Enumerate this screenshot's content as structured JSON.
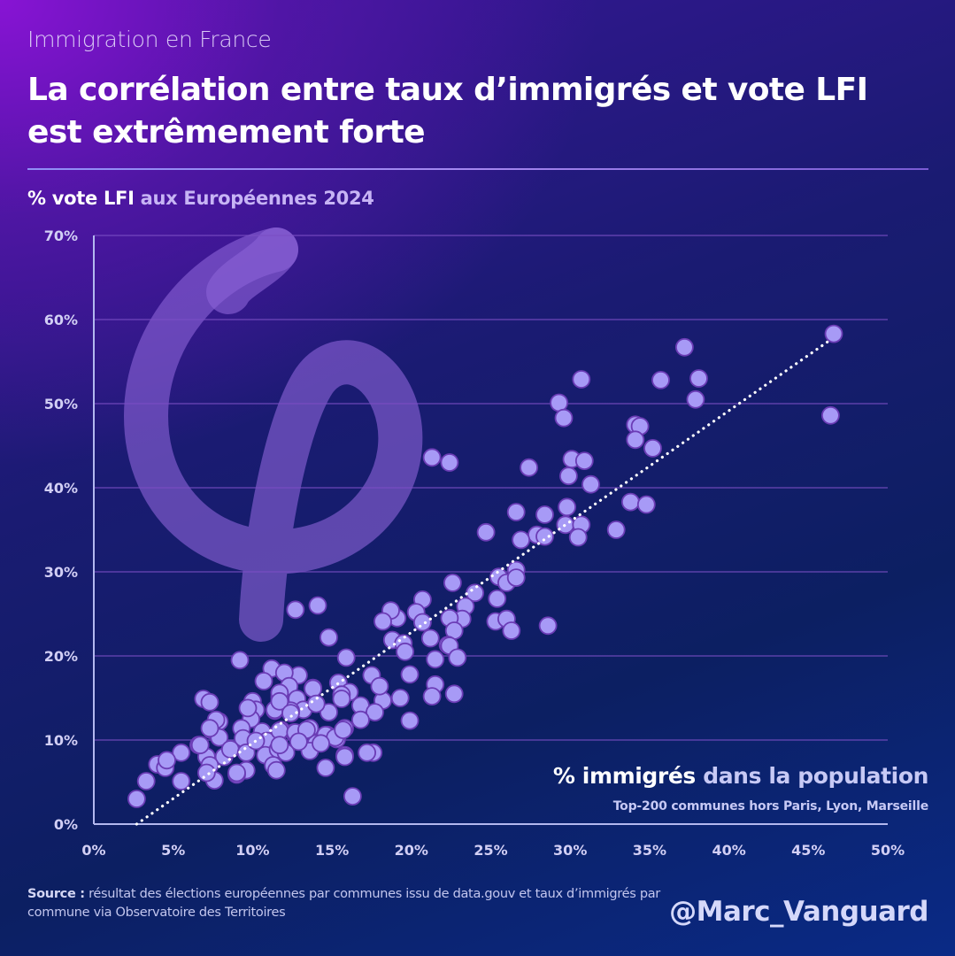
{
  "header": {
    "kicker": "Immigration en France",
    "title": "La corrélation entre taux d’immigrés et vote LFI est extrêmement forte"
  },
  "y_axis_title": {
    "highlight": "% vote LFI",
    "rest": " aux Européennes 2024"
  },
  "x_axis_title": {
    "highlight": "% immigrés",
    "rest": " dans la population",
    "subtitle": "Top-200 communes hors Paris, Lyon, Marseille"
  },
  "footer": {
    "source_label": "Source :",
    "source_text": " résultat des élections européennes par communes issu de data.gouv et taux d’immigrés par commune via Observatoire des Territoires",
    "handle": "@Marc_Vanguard"
  },
  "background_logo": "lfi-phi-logo",
  "colors": {
    "point_fill": "#a79af6",
    "point_stroke": "#6b3cb5",
    "trendline": "#ffffff",
    "gridline": "#7b4fc4",
    "axis": "#b3b8ef"
  },
  "chart_data": {
    "type": "scatter",
    "title": "% vote LFI aux Européennes 2024",
    "xlabel": "% immigrés dans la population",
    "ylabel": "% vote LFI",
    "subtitle": "Top-200 communes hors Paris, Lyon, Marseille",
    "xlim": [
      0,
      50
    ],
    "ylim": [
      0,
      70
    ],
    "x_ticks": [
      "0%",
      "5%",
      "10%",
      "15%",
      "20%",
      "25%",
      "30%",
      "35%",
      "40%",
      "45%",
      "50%"
    ],
    "y_ticks": [
      "0%",
      "10%",
      "20%",
      "30%",
      "40%",
      "50%",
      "60%",
      "70%"
    ],
    "grid": "horizontal",
    "trendline": {
      "style": "dotted",
      "from": [
        2.7,
        0
      ],
      "to": [
        46.4,
        57.6
      ]
    },
    "points": [
      [
        46.6,
        58.3
      ],
      [
        46.4,
        48.6
      ],
      [
        37.2,
        56.7
      ],
      [
        30.7,
        52.9
      ],
      [
        35.7,
        52.8
      ],
      [
        38.1,
        53.0
      ],
      [
        37.9,
        50.5
      ],
      [
        29.3,
        50.1
      ],
      [
        29.6,
        48.3
      ],
      [
        34.1,
        47.5
      ],
      [
        34.4,
        47.3
      ],
      [
        34.1,
        45.7
      ],
      [
        35.2,
        44.7
      ],
      [
        27.4,
        42.4
      ],
      [
        30.1,
        43.4
      ],
      [
        30.9,
        43.2
      ],
      [
        29.9,
        41.4
      ],
      [
        31.3,
        40.4
      ],
      [
        26.6,
        37.1
      ],
      [
        28.4,
        36.8
      ],
      [
        29.8,
        37.7
      ],
      [
        33.8,
        38.3
      ],
      [
        34.8,
        38.0
      ],
      [
        32.9,
        35.0
      ],
      [
        29.7,
        35.6
      ],
      [
        30.7,
        35.6
      ],
      [
        30.5,
        34.1
      ],
      [
        27.9,
        34.4
      ],
      [
        28.4,
        34.2
      ],
      [
        26.9,
        33.8
      ],
      [
        21.3,
        43.6
      ],
      [
        22.4,
        43.0
      ],
      [
        24.7,
        34.7
      ],
      [
        26.6,
        30.2
      ],
      [
        25.5,
        29.4
      ],
      [
        26.0,
        28.7
      ],
      [
        26.6,
        29.3
      ],
      [
        22.6,
        28.7
      ],
      [
        24.0,
        27.5
      ],
      [
        25.4,
        26.8
      ],
      [
        20.7,
        26.7
      ],
      [
        23.4,
        25.9
      ],
      [
        23.2,
        24.4
      ],
      [
        22.4,
        24.5
      ],
      [
        20.3,
        25.2
      ],
      [
        19.1,
        24.5
      ],
      [
        18.7,
        25.4
      ],
      [
        18.2,
        24.1
      ],
      [
        20.7,
        24.0
      ],
      [
        25.3,
        24.1
      ],
      [
        26.0,
        24.4
      ],
      [
        26.3,
        23.0
      ],
      [
        28.6,
        23.6
      ],
      [
        22.7,
        23.0
      ],
      [
        21.2,
        22.1
      ],
      [
        22.3,
        21.3
      ],
      [
        18.8,
        21.9
      ],
      [
        19.5,
        21.5
      ],
      [
        19.6,
        20.5
      ],
      [
        21.5,
        19.6
      ],
      [
        22.4,
        21.2
      ],
      [
        22.9,
        19.8
      ],
      [
        21.5,
        16.6
      ],
      [
        21.3,
        15.2
      ],
      [
        22.7,
        15.5
      ],
      [
        12.7,
        25.5
      ],
      [
        14.1,
        26.0
      ],
      [
        14.8,
        22.2
      ],
      [
        15.9,
        19.8
      ],
      [
        17.5,
        17.7
      ],
      [
        19.9,
        17.8
      ],
      [
        19.3,
        15.0
      ],
      [
        19.9,
        12.3
      ],
      [
        18.2,
        14.7
      ],
      [
        18.0,
        16.4
      ],
      [
        17.6,
        8.5
      ],
      [
        17.2,
        8.5
      ],
      [
        15.8,
        8.2
      ],
      [
        11.2,
        18.5
      ],
      [
        12.9,
        17.7
      ],
      [
        12.0,
        18.0
      ],
      [
        10.7,
        17.0
      ],
      [
        12.3,
        16.4
      ],
      [
        13.8,
        16.2
      ],
      [
        15.4,
        16.8
      ],
      [
        16.1,
        15.7
      ],
      [
        16.8,
        14.1
      ],
      [
        17.7,
        13.3
      ],
      [
        16.8,
        12.4
      ],
      [
        14.8,
        13.3
      ],
      [
        11.4,
        13.5
      ],
      [
        13.0,
        13.8
      ],
      [
        15.8,
        11.4
      ],
      [
        13.6,
        11.4
      ],
      [
        14.7,
        10.6
      ],
      [
        12.6,
        10.9
      ],
      [
        11.8,
        11.2
      ],
      [
        14.0,
        9.6
      ],
      [
        15.3,
        10.1
      ],
      [
        11.6,
        9.1
      ],
      [
        9.2,
        19.5
      ],
      [
        6.9,
        14.9
      ],
      [
        7.3,
        14.5
      ],
      [
        10.0,
        14.6
      ],
      [
        9.8,
        13.6
      ],
      [
        10.2,
        13.6
      ],
      [
        9.9,
        12.5
      ],
      [
        11.4,
        13.6
      ],
      [
        11.7,
        15.1
      ],
      [
        12.8,
        14.9
      ],
      [
        13.8,
        16.1
      ],
      [
        13.2,
        13.6
      ],
      [
        12.4,
        13.5
      ],
      [
        14.0,
        14.3
      ],
      [
        15.6,
        15.4
      ],
      [
        7.9,
        12.2
      ],
      [
        7.4,
        11.2
      ],
      [
        7.9,
        10.3
      ],
      [
        9.3,
        11.4
      ],
      [
        9.4,
        10.2
      ],
      [
        10.6,
        11.0
      ],
      [
        10.9,
        9.9
      ],
      [
        11.7,
        11.1
      ],
      [
        12.7,
        10.9
      ],
      [
        13.4,
        11.2
      ],
      [
        14.6,
        10.6
      ],
      [
        15.2,
        10.3
      ],
      [
        15.7,
        11.2
      ],
      [
        6.6,
        9.4
      ],
      [
        5.5,
        8.5
      ],
      [
        7.1,
        8.0
      ],
      [
        8.2,
        8.0
      ],
      [
        8.6,
        8.9
      ],
      [
        9.6,
        8.5
      ],
      [
        10.8,
        8.2
      ],
      [
        11.6,
        8.9
      ],
      [
        12.1,
        8.5
      ],
      [
        13.6,
        8.7
      ],
      [
        15.8,
        8.0
      ],
      [
        7.3,
        7.0
      ],
      [
        9.6,
        6.4
      ],
      [
        9.0,
        5.9
      ],
      [
        11.3,
        7.0
      ],
      [
        11.5,
        6.4
      ],
      [
        7.6,
        5.2
      ],
      [
        14.6,
        6.7
      ],
      [
        16.3,
        3.3
      ],
      [
        2.7,
        3.0
      ],
      [
        3.3,
        5.1
      ],
      [
        4.0,
        7.1
      ],
      [
        4.5,
        6.7
      ],
      [
        4.6,
        7.6
      ],
      [
        5.5,
        5.1
      ],
      [
        6.7,
        9.4
      ],
      [
        7.1,
        6.1
      ],
      [
        7.7,
        12.4
      ],
      [
        7.3,
        11.4
      ],
      [
        9.0,
        6.1
      ],
      [
        11.7,
        15.6
      ],
      [
        11.7,
        14.6
      ],
      [
        9.7,
        13.8
      ],
      [
        12.4,
        13.2
      ],
      [
        10.2,
        9.9
      ],
      [
        11.7,
        9.4
      ],
      [
        12.9,
        9.8
      ],
      [
        14.3,
        9.6
      ],
      [
        15.6,
        14.9
      ]
    ]
  }
}
